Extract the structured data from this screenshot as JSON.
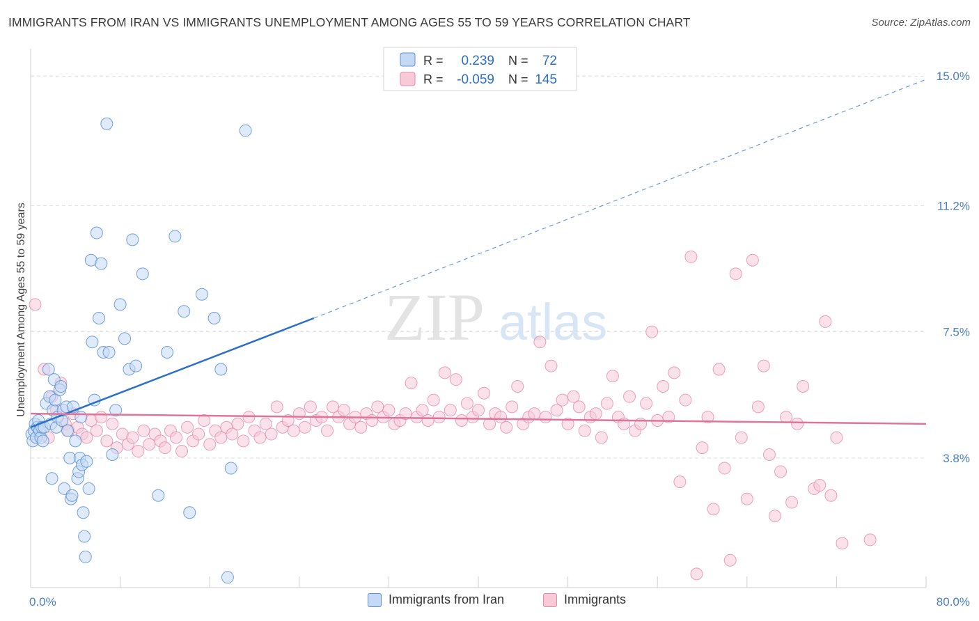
{
  "title": "IMMIGRANTS FROM IRAN VS IMMIGRANTS UNEMPLOYMENT AMONG AGES 55 TO 59 YEARS CORRELATION CHART",
  "source": "Source: ZipAtlas.com",
  "watermark": {
    "part1": "ZIP",
    "part2": "atlas"
  },
  "colors": {
    "blue_fill": "#c5d9f5",
    "blue_stroke": "#5b8fd6",
    "blue_line": "#2b6fcc",
    "pink_fill": "#f8cad8",
    "pink_stroke": "#e68aa8",
    "pink_line": "#e07498",
    "tick_label": "#4a7fc8",
    "grid": "#dcdcdc"
  },
  "stats": [
    {
      "r_label": "R =",
      "r_value": "0.239",
      "n_label": "N =",
      "n_value": "72"
    },
    {
      "r_label": "R =",
      "r_value": "-0.059",
      "n_label": "N =",
      "n_value": "145"
    }
  ],
  "legend": {
    "series1": "Immigrants from Iran",
    "series2": "Immigrants"
  },
  "chart_data": {
    "type": "scatter",
    "title": "IMMIGRANTS FROM IRAN VS IMMIGRANTS UNEMPLOYMENT AMONG AGES 55 TO 59 YEARS CORRELATION CHART",
    "xlabel": "",
    "ylabel": "Unemployment Among Ages 55 to 59 years",
    "xlim": [
      0,
      80
    ],
    "ylim": [
      0,
      15.8
    ],
    "x_tick_labels": [
      "0.0%",
      "80.0%"
    ],
    "y_ticks": [
      3.8,
      7.5,
      11.2,
      15.0
    ],
    "y_tick_labels": [
      "3.8%",
      "7.5%",
      "11.2%",
      "15.0%"
    ],
    "grid": true,
    "legend_position": "bottom",
    "series": [
      {
        "name": "Immigrants from Iran",
        "color": "#5b8fd6",
        "trend": {
          "x": [
            0,
            25.3
          ],
          "y": [
            4.7,
            7.9
          ],
          "extended": {
            "x": [
              25.3,
              80
            ],
            "y": [
              7.9,
              14.9
            ]
          }
        },
        "points": [
          [
            0.1,
            4.5
          ],
          [
            0.2,
            4.3
          ],
          [
            0.3,
            4.6
          ],
          [
            0.4,
            4.8
          ],
          [
            0.5,
            4.4
          ],
          [
            0.6,
            4.7
          ],
          [
            0.7,
            4.9
          ],
          [
            0.8,
            4.6
          ],
          [
            0.9,
            4.4
          ],
          [
            1.0,
            4.7
          ],
          [
            1.1,
            4.3
          ],
          [
            1.2,
            4.7
          ],
          [
            1.4,
            5.4
          ],
          [
            1.6,
            6.4
          ],
          [
            1.7,
            5.6
          ],
          [
            1.8,
            4.8
          ],
          [
            1.9,
            3.2
          ],
          [
            2.0,
            5.2
          ],
          [
            2.1,
            6.1
          ],
          [
            2.2,
            5.5
          ],
          [
            2.3,
            4.7
          ],
          [
            2.4,
            5.0
          ],
          [
            2.6,
            5.8
          ],
          [
            2.7,
            5.9
          ],
          [
            2.8,
            4.9
          ],
          [
            2.9,
            5.2
          ],
          [
            3.0,
            2.9
          ],
          [
            3.2,
            5.3
          ],
          [
            3.3,
            4.6
          ],
          [
            3.5,
            3.8
          ],
          [
            3.6,
            2.6
          ],
          [
            3.7,
            2.7
          ],
          [
            3.8,
            5.3
          ],
          [
            4.0,
            4.3
          ],
          [
            4.2,
            3.2
          ],
          [
            4.3,
            3.4
          ],
          [
            4.4,
            3.8
          ],
          [
            4.5,
            5.0
          ],
          [
            4.6,
            3.6
          ],
          [
            4.7,
            2.2
          ],
          [
            4.8,
            1.5
          ],
          [
            4.9,
            0.9
          ],
          [
            5.0,
            3.7
          ],
          [
            5.2,
            2.9
          ],
          [
            5.4,
            9.6
          ],
          [
            5.5,
            7.2
          ],
          [
            5.7,
            5.5
          ],
          [
            5.9,
            10.4
          ],
          [
            6.1,
            7.9
          ],
          [
            6.3,
            9.5
          ],
          [
            6.5,
            6.9
          ],
          [
            6.8,
            13.6
          ],
          [
            7.0,
            6.9
          ],
          [
            7.3,
            3.9
          ],
          [
            7.6,
            5.2
          ],
          [
            8.0,
            8.3
          ],
          [
            8.4,
            7.3
          ],
          [
            8.8,
            6.4
          ],
          [
            9.1,
            10.2
          ],
          [
            9.4,
            6.5
          ],
          [
            10.0,
            9.2
          ],
          [
            11.4,
            2.7
          ],
          [
            12.2,
            6.9
          ],
          [
            12.9,
            10.3
          ],
          [
            13.7,
            8.1
          ],
          [
            14.2,
            2.2
          ],
          [
            15.3,
            8.6
          ],
          [
            16.4,
            7.9
          ],
          [
            17.0,
            6.4
          ],
          [
            17.6,
            0.3
          ],
          [
            17.9,
            3.5
          ],
          [
            19.2,
            13.4
          ]
        ]
      },
      {
        "name": "Immigrants",
        "color": "#e68aa8",
        "trend": {
          "x": [
            0,
            80
          ],
          "y": [
            5.1,
            4.8
          ]
        },
        "points": [
          [
            0.4,
            8.3
          ],
          [
            1.2,
            6.4
          ],
          [
            1.6,
            4.4
          ],
          [
            1.9,
            5.6
          ],
          [
            2.3,
            5.2
          ],
          [
            2.7,
            6.0
          ],
          [
            3.1,
            4.8
          ],
          [
            3.4,
            4.6
          ],
          [
            3.8,
            5.1
          ],
          [
            4.2,
            4.7
          ],
          [
            4.6,
            4.5
          ],
          [
            5.0,
            4.4
          ],
          [
            5.4,
            4.9
          ],
          [
            5.9,
            4.6
          ],
          [
            6.3,
            5.0
          ],
          [
            6.8,
            4.3
          ],
          [
            7.3,
            4.8
          ],
          [
            7.7,
            4.1
          ],
          [
            8.2,
            4.5
          ],
          [
            8.7,
            4.2
          ],
          [
            9.1,
            4.4
          ],
          [
            9.6,
            4.0
          ],
          [
            10.1,
            4.6
          ],
          [
            10.6,
            4.2
          ],
          [
            11.1,
            4.5
          ],
          [
            11.6,
            4.3
          ],
          [
            12.0,
            4.1
          ],
          [
            12.5,
            4.6
          ],
          [
            13.0,
            4.4
          ],
          [
            13.5,
            4.0
          ],
          [
            14.0,
            4.7
          ],
          [
            14.5,
            4.3
          ],
          [
            15.0,
            4.5
          ],
          [
            15.5,
            4.9
          ],
          [
            16.0,
            4.2
          ],
          [
            16.5,
            4.6
          ],
          [
            17.0,
            4.4
          ],
          [
            17.5,
            4.7
          ],
          [
            18.0,
            4.5
          ],
          [
            18.5,
            4.8
          ],
          [
            19.0,
            4.3
          ],
          [
            19.5,
            5.0
          ],
          [
            20.0,
            4.6
          ],
          [
            20.5,
            4.4
          ],
          [
            21.0,
            4.8
          ],
          [
            21.5,
            4.5
          ],
          [
            22.0,
            5.3
          ],
          [
            22.5,
            4.7
          ],
          [
            23.0,
            4.9
          ],
          [
            23.5,
            4.6
          ],
          [
            24.0,
            5.1
          ],
          [
            24.5,
            4.7
          ],
          [
            25.0,
            5.3
          ],
          [
            25.5,
            4.9
          ],
          [
            26.0,
            5.0
          ],
          [
            26.5,
            4.6
          ],
          [
            27.0,
            5.3
          ],
          [
            27.5,
            5.0
          ],
          [
            28.0,
            5.2
          ],
          [
            28.5,
            4.8
          ],
          [
            29.0,
            5.0
          ],
          [
            29.5,
            4.7
          ],
          [
            30.0,
            5.1
          ],
          [
            30.5,
            4.9
          ],
          [
            31.0,
            5.3
          ],
          [
            31.5,
            5.0
          ],
          [
            32.0,
            5.2
          ],
          [
            32.5,
            4.8
          ],
          [
            33.0,
            4.9
          ],
          [
            33.5,
            5.1
          ],
          [
            34.0,
            6.0
          ],
          [
            34.5,
            5.0
          ],
          [
            35.0,
            5.2
          ],
          [
            35.5,
            4.9
          ],
          [
            36.0,
            5.5
          ],
          [
            36.5,
            5.0
          ],
          [
            37.0,
            6.3
          ],
          [
            37.5,
            5.2
          ],
          [
            38.0,
            6.1
          ],
          [
            38.5,
            4.9
          ],
          [
            39.0,
            5.4
          ],
          [
            39.5,
            5.0
          ],
          [
            40.0,
            5.2
          ],
          [
            40.5,
            5.7
          ],
          [
            41.0,
            4.8
          ],
          [
            41.5,
            5.1
          ],
          [
            42.0,
            5.0
          ],
          [
            42.5,
            4.7
          ],
          [
            43.0,
            5.3
          ],
          [
            43.5,
            5.9
          ],
          [
            44.0,
            4.8
          ],
          [
            44.5,
            5.0
          ],
          [
            45.0,
            5.1
          ],
          [
            45.5,
            7.2
          ],
          [
            46.0,
            5.0
          ],
          [
            46.5,
            6.5
          ],
          [
            47.0,
            5.2
          ],
          [
            47.5,
            5.5
          ],
          [
            48.0,
            4.8
          ],
          [
            48.5,
            5.6
          ],
          [
            49.0,
            5.3
          ],
          [
            49.5,
            4.6
          ],
          [
            50.0,
            5.0
          ],
          [
            50.5,
            5.1
          ],
          [
            51.0,
            4.4
          ],
          [
            51.5,
            5.4
          ],
          [
            52.0,
            6.2
          ],
          [
            52.5,
            5.0
          ],
          [
            53.0,
            4.8
          ],
          [
            53.5,
            5.6
          ],
          [
            54.0,
            4.6
          ],
          [
            54.5,
            4.8
          ],
          [
            55.0,
            5.4
          ],
          [
            55.5,
            7.5
          ],
          [
            56.0,
            4.9
          ],
          [
            56.5,
            5.9
          ],
          [
            57.0,
            5.0
          ],
          [
            57.5,
            6.3
          ],
          [
            58.0,
            3.1
          ],
          [
            58.5,
            5.5
          ],
          [
            59.0,
            9.7
          ],
          [
            59.5,
            0.4
          ],
          [
            60.0,
            4.1
          ],
          [
            60.5,
            5.0
          ],
          [
            61.0,
            2.3
          ],
          [
            61.5,
            6.4
          ],
          [
            62.0,
            3.5
          ],
          [
            62.5,
            0.8
          ],
          [
            63.0,
            9.2
          ],
          [
            63.5,
            4.4
          ],
          [
            64.0,
            2.6
          ],
          [
            64.5,
            9.6
          ],
          [
            65.0,
            5.3
          ],
          [
            65.5,
            6.5
          ],
          [
            66.0,
            3.9
          ],
          [
            66.5,
            2.1
          ],
          [
            67.0,
            3.4
          ],
          [
            67.5,
            5.0
          ],
          [
            68.0,
            2.5
          ],
          [
            68.5,
            4.8
          ],
          [
            69.0,
            5.9
          ],
          [
            70.0,
            2.9
          ],
          [
            70.5,
            3.0
          ],
          [
            71.0,
            7.8
          ],
          [
            71.5,
            2.7
          ],
          [
            72.0,
            4.4
          ],
          [
            72.5,
            1.3
          ],
          [
            75.0,
            1.4
          ]
        ]
      }
    ]
  }
}
